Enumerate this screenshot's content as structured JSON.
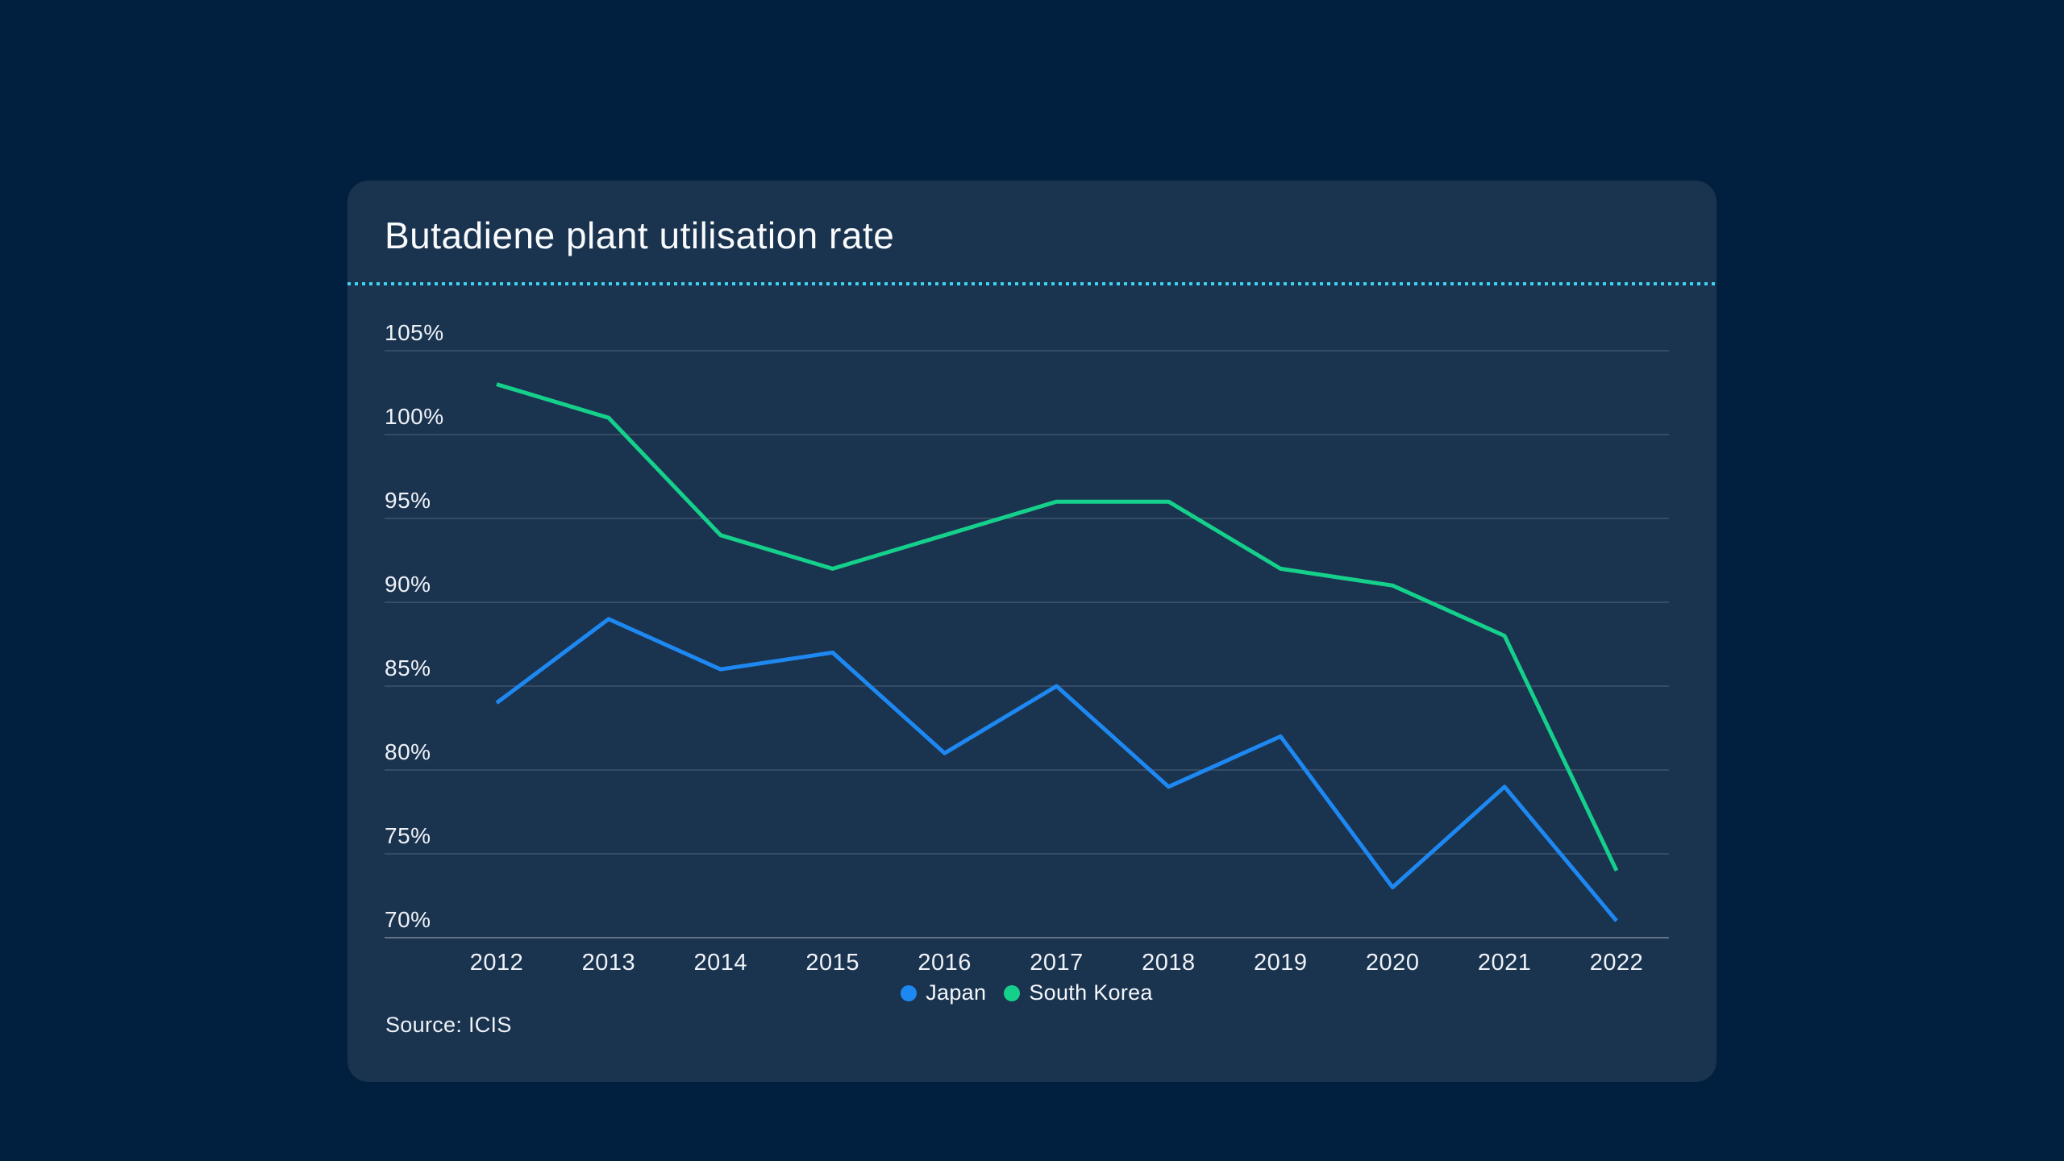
{
  "page": {
    "background_color": "#011f3e"
  },
  "card": {
    "background_color": "#1a334f",
    "title": "Butadiene plant utilisation rate",
    "separator_color": "#3fd3f2",
    "source": "Source: ICIS"
  },
  "legend": {
    "items": [
      {
        "label": "Japan",
        "color": "#1e88f2"
      },
      {
        "label": "South Korea",
        "color": "#15d08b"
      }
    ]
  },
  "chart_data": {
    "type": "line",
    "title": "Butadiene plant utilisation rate",
    "x": [
      2012,
      2013,
      2014,
      2015,
      2016,
      2017,
      2018,
      2019,
      2020,
      2021,
      2022
    ],
    "x_tick_labels": [
      "2012",
      "2013",
      "2014",
      "2015",
      "2016",
      "2017",
      "2018",
      "2019",
      "2020",
      "2021",
      "2022"
    ],
    "series": [
      {
        "name": "Japan",
        "color": "#1e88f2",
        "values": [
          84,
          89,
          86,
          87,
          81,
          85,
          79,
          82,
          73,
          79,
          71
        ]
      },
      {
        "name": "South Korea",
        "color": "#15d08b",
        "values": [
          103,
          101,
          94,
          92,
          94,
          96,
          96,
          92,
          91,
          88,
          74
        ]
      }
    ],
    "ylim": [
      70,
      105
    ],
    "y_ticks": [
      105,
      100,
      95,
      90,
      85,
      80,
      75,
      70
    ],
    "y_tick_suffix": "%",
    "grid": "horizontal",
    "gridline_color": "rgba(255,255,255,0.17)",
    "baseline_color": "rgba(255,255,255,0.32)",
    "legend_position": "bottom",
    "source": "Source: ICIS"
  }
}
